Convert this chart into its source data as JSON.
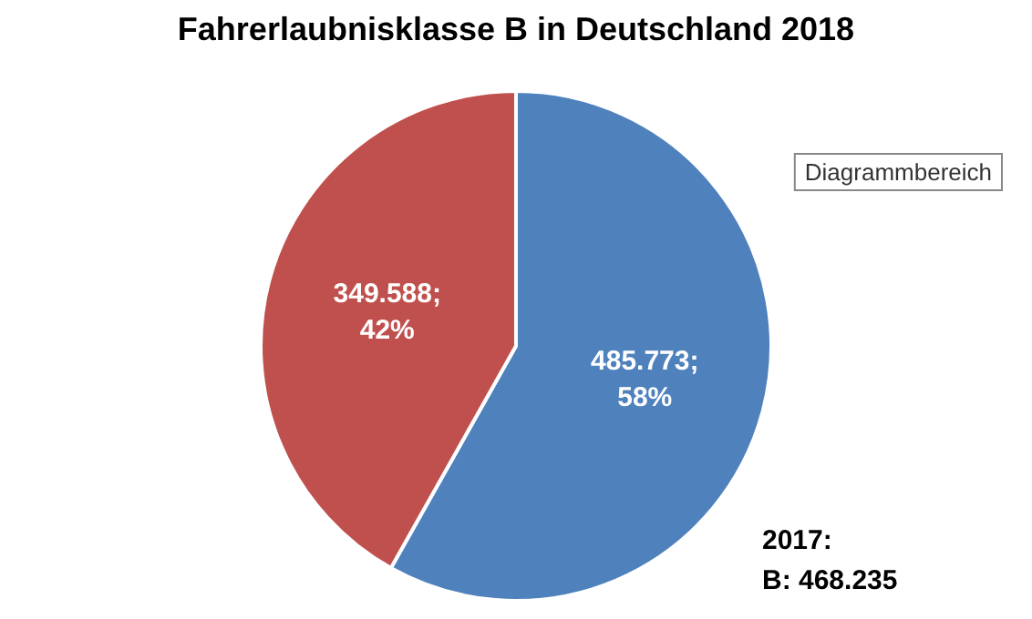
{
  "chart_data": {
    "type": "pie",
    "title": "Fahrerlaubnisklasse B in Deutschland 2018",
    "categories": [
      null,
      null
    ],
    "values": [
      485773,
      349588
    ],
    "colors": [
      "#4f81bd",
      "#c0504d"
    ],
    "value_labels": [
      "485.773;\n58%",
      "349.588;\n42%"
    ],
    "annotations": [
      "Diagrammbereich",
      "2017:\nB: 468.235"
    ],
    "legend": false
  }
}
